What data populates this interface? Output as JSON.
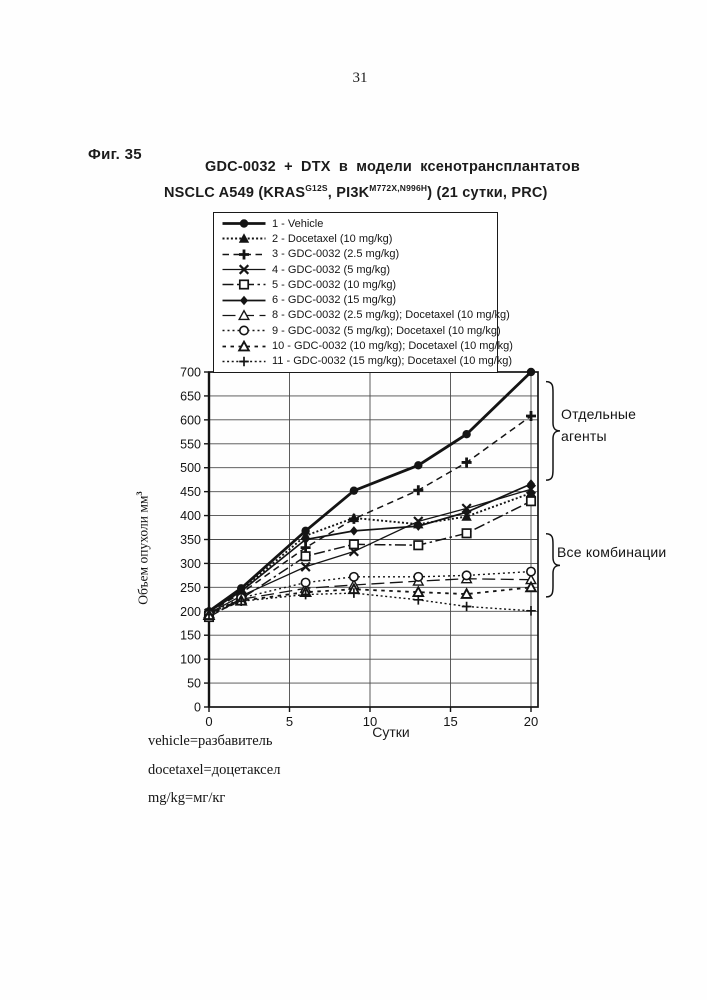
{
  "page": {
    "number": "31",
    "figure_label": "Фиг. 35",
    "title_line1": "GDC-0032 + DTX в модели ксенотрансплантатов",
    "title_line2": {
      "p1": "NSCLC A549 (KRAS",
      "sup1": "G12S",
      "p2": ", PI3K",
      "sup2": "M772X,N996H",
      "p3": ") (21 сутки, PRC)"
    },
    "notes": [
      "vehicle=разбавитель",
      "docetaxel=доцетаксел",
      "mg/kg=мг/кг"
    ]
  },
  "chart_data": {
    "type": "line",
    "title": "GDC-0032 + DTX в модели ксенотрансплантатов NSCLC A549 (KRAS G12S, PI3K M772X,N996H) (21 сутки, PRC)",
    "xlabel": "Сутки",
    "ylabel": "Объем опухоли мм³",
    "ylabel_base": "Объем опухоли мм",
    "ylabel_sup": "3",
    "xlim": [
      0,
      20.45
    ],
    "ylim": [
      0,
      700
    ],
    "ytick_step": 50,
    "xticks": [
      0,
      5,
      10,
      15,
      20
    ],
    "grid": true,
    "legend_position": "top-left-box",
    "x": [
      0,
      2,
      6,
      9,
      13,
      16,
      20
    ],
    "series": [
      {
        "label": "1 - Vehicle",
        "marker": "filled-circle",
        "line": "solid-thick",
        "values": [
          200,
          248,
          368,
          452,
          505,
          570,
          700
        ]
      },
      {
        "label": "2 - Docetaxel (10 mg/kg)",
        "marker": "filled-triangle",
        "line": "dense-dotted",
        "values": [
          200,
          244,
          358,
          395,
          382,
          398,
          447
        ]
      },
      {
        "label": "3 - GDC-0032 (2.5 mg/kg)",
        "marker": "bold-plus",
        "line": "dashed",
        "values": [
          198,
          238,
          333,
          393,
          453,
          511,
          608
        ]
      },
      {
        "label": "4 - GDC-0032 (5 mg/kg)",
        "marker": "x-cross",
        "line": "solid-thin",
        "values": [
          196,
          232,
          293,
          325,
          388,
          415,
          455
        ]
      },
      {
        "label": "5 - GDC-0032 (10 mg/kg)",
        "marker": "open-square",
        "line": "dash-dot",
        "values": [
          188,
          226,
          315,
          340,
          338,
          363,
          430
        ]
      },
      {
        "label": "6 - GDC-0032 (15 mg/kg)",
        "marker": "filled-diamond",
        "line": "solid",
        "values": [
          199,
          242,
          350,
          368,
          378,
          407,
          466
        ]
      },
      {
        "label": "8 - GDC-0032 (2.5 mg/kg); Docetaxel (10 mg/kg)",
        "marker": "open-triangle",
        "line": "long-dash",
        "values": [
          195,
          225,
          248,
          255,
          263,
          268,
          266
        ]
      },
      {
        "label": "9 - GDC-0032 (5 mg/kg); Docetaxel (10 mg/kg)",
        "marker": "open-circle",
        "line": "dotted",
        "values": [
          194,
          228,
          260,
          272,
          272,
          275,
          283
        ]
      },
      {
        "label": "10 - GDC-0032 (10 mg/kg); Docetaxel (10 mg/kg)",
        "marker": "open-triangle-bold",
        "line": "sparse-dash",
        "values": [
          192,
          222,
          240,
          246,
          240,
          236,
          250
        ]
      },
      {
        "label": "11 - GDC-0032 (15 mg/kg); Docetaxel (10 mg/kg)",
        "marker": "thin-plus",
        "line": "fine-dotted",
        "values": [
          193,
          221,
          235,
          238,
          224,
          210,
          201
        ]
      }
    ],
    "annotations": {
      "single_agents": {
        "line1": "Отдельные",
        "line2": "агенты",
        "brace_value_range": [
          680,
          474
        ]
      },
      "combinations": {
        "line1": "Все комбинации",
        "brace_value_range": [
          362,
          230
        ]
      }
    },
    "ink_color": "#141414"
  }
}
